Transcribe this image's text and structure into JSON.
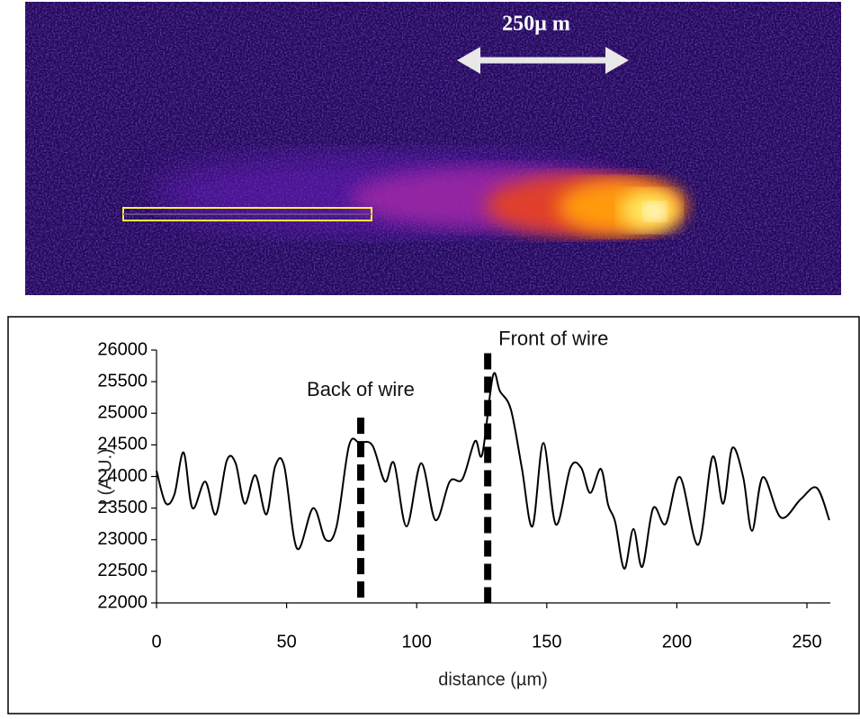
{
  "image": {
    "scale_label": "250µ m"
  },
  "chart_data": {
    "type": "line",
    "x_label": "distance (µm)",
    "y_label": "I (A.U.)",
    "xlim": [
      0,
      259
    ],
    "ylim": [
      22000,
      26000
    ],
    "xticks": [
      0,
      50,
      100,
      150,
      200,
      250
    ],
    "yticks": [
      22000,
      22500,
      23000,
      23500,
      24000,
      24500,
      25000,
      25500,
      26000
    ],
    "series": [
      {
        "color": "#000000",
        "x": [
          0,
          3.5,
          6.9,
          10.4,
          13.8,
          18.7,
          22.8,
          27,
          30.4,
          33.9,
          38,
          42.2,
          45.6,
          49.1,
          54,
          60.2,
          65,
          69.2,
          74,
          78.1,
          83,
          87.8,
          91.3,
          96.1,
          101.7,
          107.2,
          112.7,
          117.6,
          122.4,
          125.2,
          129.3,
          132,
          136.2,
          140.4,
          144.5,
          148.7,
          153.5,
          159.1,
          163.2,
          166.7,
          170.8,
          173.6,
          176.3,
          179.8,
          183.3,
          186.7,
          190.9,
          195.7,
          201.2,
          208.2,
          213.7,
          217.8,
          221.3,
          225.5,
          228.9,
          233.1,
          240,
          247.6,
          253.8,
          258.6
        ],
        "values": [
          24090,
          23580,
          23720,
          24380,
          23500,
          23920,
          23400,
          24250,
          24210,
          23570,
          24020,
          23400,
          24160,
          24160,
          22860,
          23500,
          23000,
          23210,
          24490,
          24530,
          24490,
          23920,
          24210,
          23210,
          24210,
          23310,
          23920,
          23960,
          24560,
          24350,
          25590,
          25350,
          25060,
          24140,
          23210,
          24530,
          23240,
          24140,
          24140,
          23740,
          24120,
          23550,
          23280,
          22540,
          23170,
          22570,
          23500,
          23250,
          23990,
          22920,
          24310,
          23570,
          24450,
          23990,
          23140,
          23990,
          23350,
          23640,
          23820,
          23310
        ]
      }
    ],
    "annotations": [
      {
        "text": "Back of wire",
        "x": 78.5,
        "y": 24930
      },
      {
        "text": "Front of wire",
        "x": 127.3,
        "y": 25950
      }
    ]
  }
}
